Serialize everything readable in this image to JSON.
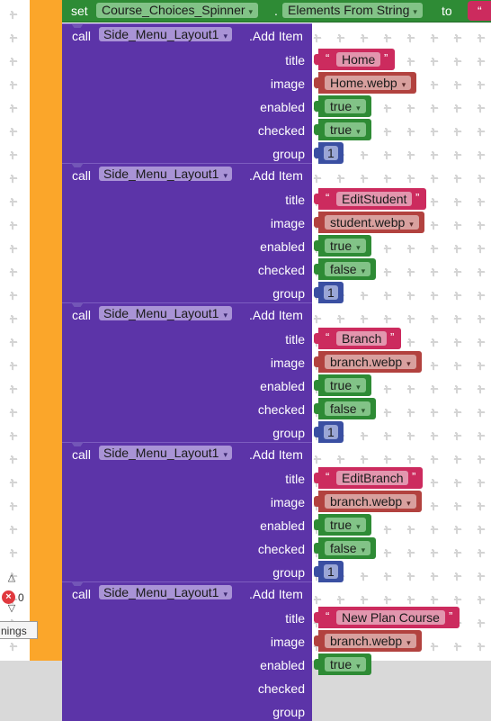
{
  "set_block": {
    "keyword": "set",
    "component": "Course_Choices_Spinner",
    "dot": ".",
    "property": "Elements From String",
    "to": "to",
    "quote": "“"
  },
  "call_blocks": [
    {
      "keyword": "call",
      "component": "Side_Menu_Layout1",
      "method": ".Add Item",
      "params": {
        "title": "title",
        "image": "image",
        "enabled": "enabled",
        "checked": "checked",
        "group": "group"
      },
      "title": "Home",
      "image": "Home.webp",
      "enabled": "true",
      "checked": "true",
      "group": "1"
    },
    {
      "keyword": "call",
      "component": "Side_Menu_Layout1",
      "method": ".Add Item",
      "params": {
        "title": "title",
        "image": "image",
        "enabled": "enabled",
        "checked": "checked",
        "group": "group"
      },
      "title": "EditStudent",
      "image": "student.webp",
      "enabled": "true",
      "checked": "false",
      "group": "1"
    },
    {
      "keyword": "call",
      "component": "Side_Menu_Layout1",
      "method": ".Add Item",
      "params": {
        "title": "title",
        "image": "image",
        "enabled": "enabled",
        "checked": "checked",
        "group": "group"
      },
      "title": "Branch",
      "image": "branch.webp",
      "enabled": "true",
      "checked": "false",
      "group": "1"
    },
    {
      "keyword": "call",
      "component": "Side_Menu_Layout1",
      "method": ".Add Item",
      "params": {
        "title": "title",
        "image": "image",
        "enabled": "enabled",
        "checked": "checked",
        "group": "group"
      },
      "title": "EditBranch",
      "image": "branch.webp",
      "enabled": "true",
      "checked": "false",
      "group": "1"
    },
    {
      "keyword": "call",
      "component": "Side_Menu_Layout1",
      "method": ".Add Item",
      "params": {
        "title": "title",
        "image": "image",
        "enabled": "enabled",
        "checked": "checked",
        "group": "group"
      },
      "title": "New Plan Course",
      "image": "branch.webp",
      "enabled": "true",
      "checked": "",
      "group": ""
    }
  ],
  "quote_open": "“",
  "quote_close": "”",
  "dropdown_arrow": "▾",
  "workspace": {
    "error_count": "0",
    "warnings_label": "nings",
    "up_arrow": "△",
    "down_arrow": "▽"
  },
  "colors": {
    "event_orange": "#fba62a",
    "set_green": "#2e8b35",
    "call_purple": "#5c34a8",
    "text_pink": "#cc2b5e",
    "image_red": "#b2423f",
    "number_blue": "#3a4fa2"
  }
}
